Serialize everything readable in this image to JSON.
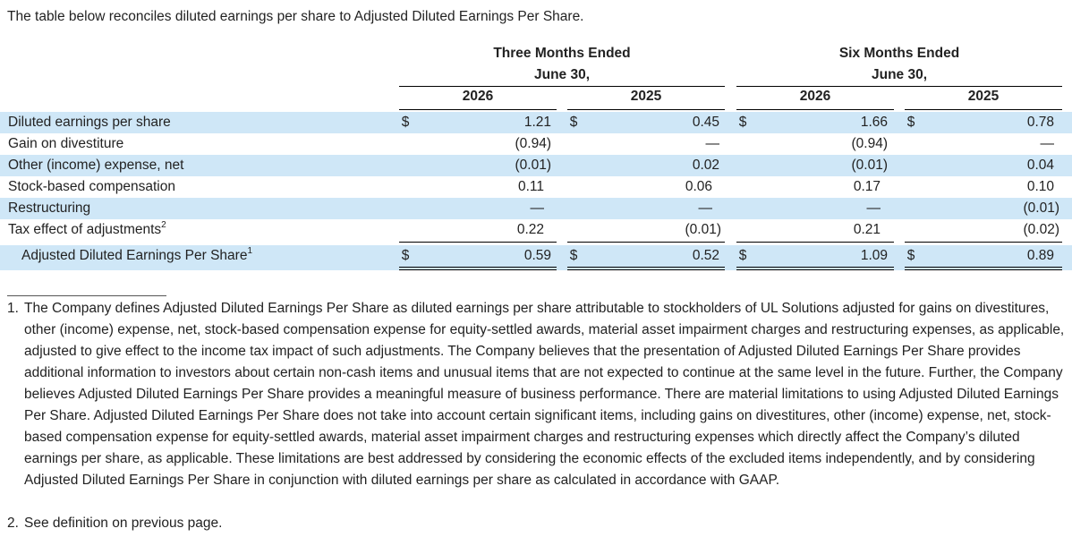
{
  "intro": "The table below reconciles diluted earnings per share to Adjusted Diluted Earnings Per Share.",
  "headers": {
    "three_months_line1": "Three Months Ended",
    "three_months_line2": "June 30,",
    "six_months_line1": "Six Months Ended",
    "six_months_line2": "June 30,",
    "years": [
      "2026",
      "2025",
      "2026",
      "2025"
    ]
  },
  "currency_symbol": "$",
  "rows": [
    {
      "label": "Diluted earnings per share",
      "sup": "",
      "values": [
        "1.21",
        "0.45",
        "1.66",
        "0.78"
      ]
    },
    {
      "label": "Gain on divestiture",
      "sup": "",
      "values": [
        "(0.94)",
        "—",
        "(0.94)",
        "—"
      ]
    },
    {
      "label": "Other (income) expense, net",
      "sup": "",
      "values": [
        "(0.01)",
        "0.02",
        "(0.01)",
        "0.04"
      ]
    },
    {
      "label": "Stock-based compensation",
      "sup": "",
      "values": [
        "0.11",
        "0.06",
        "0.17",
        "0.10"
      ]
    },
    {
      "label": "Restructuring",
      "sup": "",
      "values": [
        "—",
        "—",
        "—",
        "(0.01)"
      ]
    },
    {
      "label": "Tax effect of adjustments",
      "sup": "2",
      "values": [
        "0.22",
        "(0.01)",
        "0.21",
        "(0.02)"
      ]
    },
    {
      "label": "Adjusted Diluted Earnings Per Share",
      "sup": "1",
      "values": [
        "0.59",
        "0.52",
        "1.09",
        "0.89"
      ]
    }
  ],
  "footnotes": [
    {
      "num": "1.",
      "text": "The Company defines Adjusted Diluted Earnings Per Share as diluted earnings per share attributable to stockholders of UL Solutions adjusted for gains on divestitures, other (income) expense, net, stock-based compensation expense for equity-settled awards, material asset impairment charges and restructuring expenses, as applicable, adjusted to give effect to the income tax impact of such adjustments. The Company believes that the presentation of Adjusted Diluted Earnings Per Share provides additional information to investors about certain non-cash items and unusual items that are not expected to continue at the same level in the future. Further, the Company believes Adjusted Diluted Earnings Per Share provides a meaningful measure of business performance. There are material limitations to using Adjusted Diluted Earnings Per Share. Adjusted Diluted Earnings Per Share does not take into account certain significant items, including gains on divestitures, other (income) expense, net, stock-based compensation expense for equity-settled awards, material asset impairment charges and restructuring expenses which directly affect the Company’s diluted earnings per share, as applicable. These limitations are best addressed by considering the economic effects of the excluded items independently, and by considering Adjusted Diluted Earnings Per Share in conjunction with diluted earnings per share as calculated in accordance with GAAP."
    },
    {
      "num": "2.",
      "text": "See definition on previous page."
    }
  ]
}
